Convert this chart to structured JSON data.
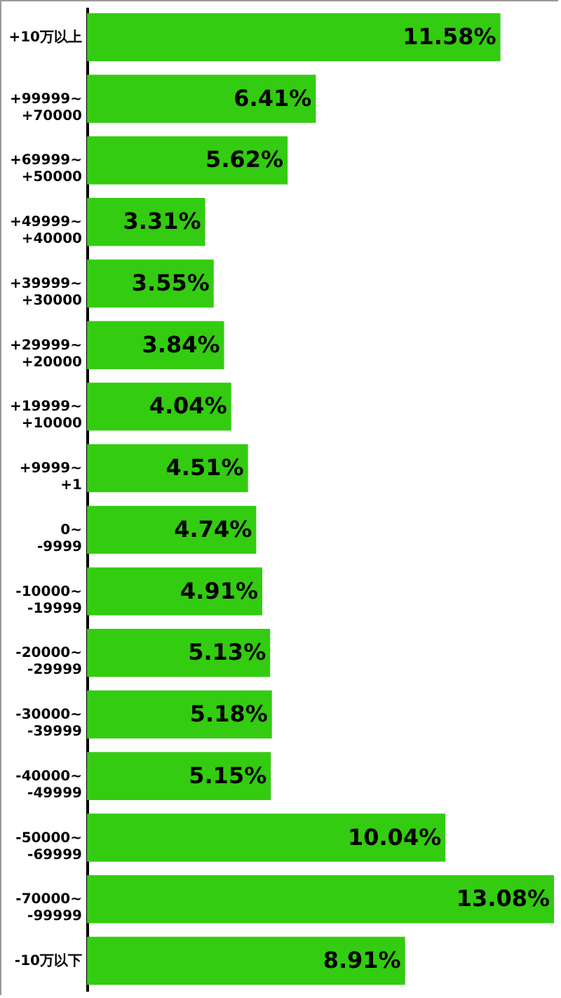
{
  "chart_data": {
    "type": "bar",
    "orientation": "horizontal",
    "color": "#33cc11",
    "categories": [
      "+10万以上",
      "+99999~\n+70000",
      "+69999~\n+50000",
      "+49999~\n+40000",
      "+39999~\n+30000",
      "+29999~\n+20000",
      "+19999~\n+10000",
      "+9999~\n+1",
      "0~\n-9999",
      "-10000~\n-19999",
      "-20000~\n-29999",
      "-30000~\n-39999",
      "-40000~\n-49999",
      "-50000~\n-69999",
      "-70000~\n-99999",
      "-10万以下"
    ],
    "values": [
      11.58,
      6.41,
      5.62,
      3.31,
      3.55,
      3.84,
      4.04,
      4.51,
      4.74,
      4.91,
      5.13,
      5.18,
      5.15,
      10.04,
      13.08,
      8.91
    ],
    "value_labels": [
      "11.58%",
      "6.41%",
      "5.62%",
      "3.31%",
      "3.55%",
      "3.84%",
      "4.04%",
      "4.51%",
      "4.74%",
      "4.91%",
      "5.13%",
      "5.18%",
      "5.15%",
      "10.04%",
      "13.08%",
      "8.91%"
    ]
  }
}
